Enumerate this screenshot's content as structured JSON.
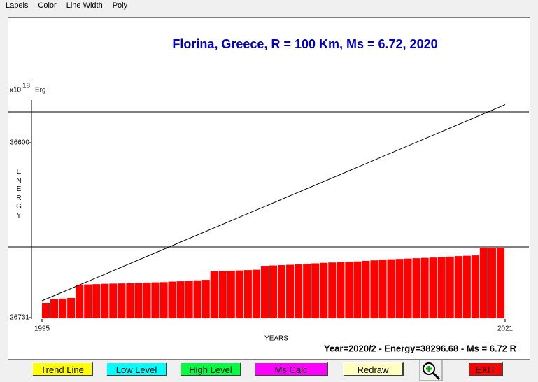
{
  "menu": [
    "Labels",
    "Color",
    "Line Width",
    "Poly"
  ],
  "chart_data": {
    "type": "bar",
    "title": "Florina, Greece, R = 100 Km, Ms = 6.72, 2020",
    "y_axis": {
      "base": "x10",
      "exponent": "18",
      "unit": "Erg",
      "label": "ENERGY"
    },
    "x_label": "YEARS",
    "xlim": [
      1995,
      2021
    ],
    "xticks": [
      1995,
      2021
    ],
    "ylim": [
      26731,
      39008
    ],
    "yticks": [
      26731,
      36600
    ],
    "color": "#ff0000",
    "values": [
      27560,
      27757,
      27800,
      27840,
      28586,
      28600,
      28620,
      28640,
      28650,
      28660,
      28670,
      28680,
      28700,
      28720,
      28730,
      28760,
      28780,
      28800,
      28830,
      28860,
      29336,
      29350,
      29370,
      29390,
      29410,
      29430,
      29650,
      29670,
      29690,
      29710,
      29730,
      29760,
      29790,
      29820,
      29840,
      29860,
      29880,
      29900,
      29930,
      29960,
      30000,
      30020,
      30040,
      30060,
      30080,
      30100,
      30120,
      30140,
      30170,
      30200,
      30220,
      30240,
      30679,
      30679,
      30679
    ],
    "low_level": 30718,
    "high_level": 38337,
    "trend_line": {
      "x": [
        1995,
        2021
      ],
      "values": [
        27678,
        38748
      ]
    },
    "status": "Year=2020/2 - Energy=38296.68 - Ms = 6.72 R"
  },
  "buttons": [
    "Trend Line",
    "Low Level",
    "High Level",
    "Ms Calc",
    "Redraw",
    "EXIT"
  ]
}
